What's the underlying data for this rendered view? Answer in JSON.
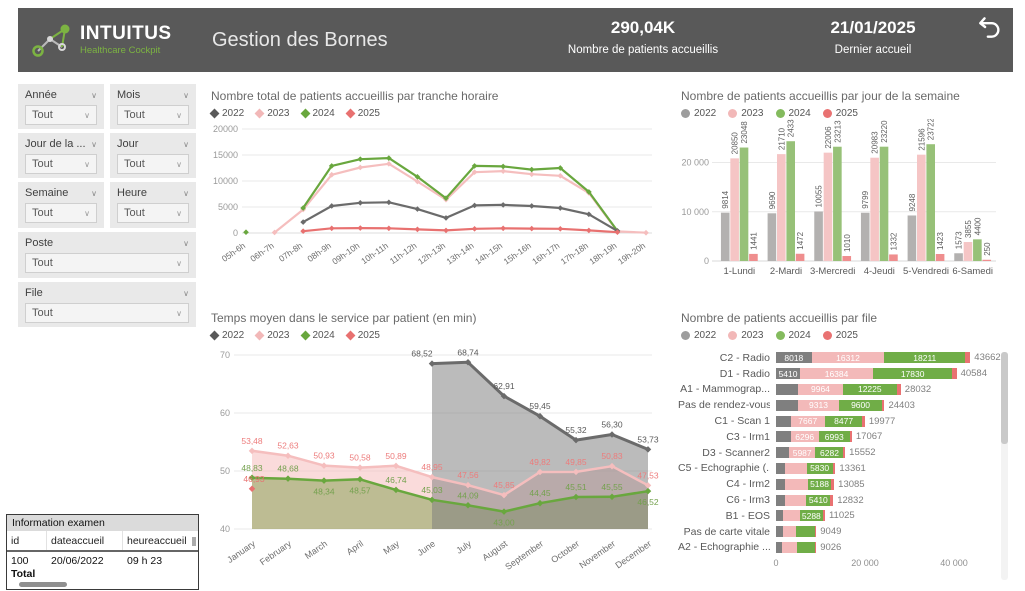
{
  "header": {
    "brand": {
      "name": "INTUITUS",
      "tagline": "Healthcare Cockpit"
    },
    "title": "Gestion des Bornes",
    "kpis": [
      {
        "value": "290,04K",
        "label": "Nombre de  patients accueillis"
      },
      {
        "value": "21/01/2025",
        "label": "Dernier accueil"
      }
    ]
  },
  "icons": {
    "dropdown_chevron": "∨",
    "undo": "curved-left-arrow"
  },
  "filters": [
    {
      "label": "Année",
      "value": "Tout"
    },
    {
      "label": "Mois",
      "value": "Tout"
    },
    {
      "label": "Jour de la ...",
      "value": "Tout"
    },
    {
      "label": "Jour",
      "value": "Tout"
    },
    {
      "label": "Semaine",
      "value": "Tout"
    },
    {
      "label": "Heure",
      "value": "Tout"
    },
    {
      "label": "Poste",
      "value": "Tout"
    },
    {
      "label": "File",
      "value": "Tout"
    }
  ],
  "colors": {
    "header_bg": "#595959",
    "accent_green": "#7CB342",
    "line": {
      "2022": "#6B6B6B",
      "2023": "#F5BEBE",
      "2024": "#69A73E",
      "2025": "#E87170"
    },
    "bar": {
      "2022": "#B3B1B0",
      "2023": "#F5C5C5",
      "2024": "#97C178",
      "2025": "#EF8E8E"
    },
    "stack": {
      "2022": "#7F7F7F",
      "2023": "#F3B9B9",
      "2024": "#70AD47",
      "2025": "#E97272"
    },
    "labels": {
      "2022": "#595959",
      "2023": "#ED7C7C",
      "2024": "#74A14E",
      "2025": "#E87170"
    },
    "grid": "#E9E9E9"
  },
  "chart_data": [
    {
      "type": "line",
      "title": "Nombre total de patients accueillis par tranche horaire",
      "legend": [
        "2022",
        "2023",
        "2024",
        "2025"
      ],
      "categories": [
        "05h-6h",
        "06h-7h",
        "07h-8h",
        "08h-9h",
        "09h-10h",
        "10h-11h",
        "11h-12h",
        "12h-13h",
        "13h-14h",
        "14h-15h",
        "15h-16h",
        "16h-17h",
        "17h-18h",
        "18h-19h",
        "19h-20h"
      ],
      "series": [
        {
          "name": "2022",
          "values": [
            null,
            null,
            2100,
            5200,
            5800,
            5900,
            4600,
            2900,
            5300,
            5400,
            5200,
            4800,
            3600,
            400,
            null
          ]
        },
        {
          "name": "2023",
          "values": [
            null,
            100,
            4500,
            11200,
            12600,
            13300,
            9900,
            6400,
            11700,
            11900,
            11300,
            11000,
            7700,
            300,
            50
          ]
        },
        {
          "name": "2024",
          "values": [
            150,
            null,
            4800,
            12900,
            14200,
            14400,
            10800,
            6700,
            12900,
            12800,
            12200,
            12500,
            7900,
            400,
            null
          ]
        },
        {
          "name": "2025",
          "values": [
            null,
            null,
            350,
            900,
            950,
            900,
            700,
            500,
            800,
            900,
            850,
            800,
            500,
            150,
            null
          ]
        }
      ],
      "ylim": [
        0,
        20000
      ],
      "yticks": [
        0,
        5000,
        10000,
        15000,
        20000
      ],
      "ytick_labels": [
        "0",
        "5000",
        "10000",
        "15000",
        "20000"
      ]
    },
    {
      "type": "bar",
      "title": "Nombre de patients accueillis par jour de la semaine",
      "legend": [
        "2022",
        "2023",
        "2024",
        "2025"
      ],
      "categories": [
        "1-Lundi",
        "2-Mardi",
        "3-Mercredi",
        "4-Jeudi",
        "5-Vendredi",
        "6-Samedi"
      ],
      "series": [
        {
          "name": "2022",
          "values": [
            9814,
            9690,
            10055,
            9799,
            9248,
            1573
          ]
        },
        {
          "name": "2023",
          "values": [
            20850,
            21710,
            22006,
            20983,
            21596,
            3855
          ]
        },
        {
          "name": "2024",
          "values": [
            23048,
            24331,
            23213,
            23220,
            23722,
            4400
          ]
        },
        {
          "name": "2025",
          "values": [
            1441,
            1472,
            1010,
            1332,
            1423,
            250
          ]
        }
      ],
      "ylim": [
        0,
        26000
      ],
      "yticks": [
        0,
        10000,
        20000
      ],
      "ytick_labels": [
        "0",
        "10 000",
        "20 000"
      ]
    },
    {
      "type": "area",
      "title": "Temps moyen dans le service par patient (en min)",
      "legend": [
        "2022",
        "2023",
        "2024",
        "2025"
      ],
      "categories": [
        "January",
        "February",
        "March",
        "April",
        "May",
        "June",
        "July",
        "August",
        "September",
        "October",
        "November",
        "December"
      ],
      "series": [
        {
          "name": "2022",
          "values": [
            null,
            null,
            null,
            null,
            null,
            68.52,
            68.74,
            62.91,
            59.45,
            55.32,
            56.3,
            53.73
          ]
        },
        {
          "name": "2023",
          "values": [
            53.48,
            52.63,
            50.93,
            50.58,
            50.89,
            48.95,
            47.56,
            45.85,
            49.82,
            49.85,
            50.83,
            47.53
          ]
        },
        {
          "name": "2024",
          "values": [
            48.83,
            48.68,
            48.34,
            48.57,
            46.74,
            45.03,
            44.09,
            43.0,
            44.45,
            45.51,
            45.55,
            46.52
          ]
        },
        {
          "name": "2025",
          "values": [
            46.93,
            null,
            null,
            null,
            null,
            null,
            null,
            null,
            null,
            null,
            null,
            null
          ]
        }
      ],
      "ylim": [
        40,
        70
      ],
      "yticks": [
        40,
        50,
        60,
        70
      ],
      "ytick_labels": [
        "40",
        "50",
        "60",
        "70"
      ]
    },
    {
      "type": "stacked-bar-h",
      "title": "Nombre de patients accueillis par file",
      "legend": [
        "2022",
        "2023",
        "2024",
        "2025"
      ],
      "rows": [
        {
          "label": "C2 - Radio",
          "values": [
            8018,
            16312,
            18211,
            1121
          ],
          "total": 43662
        },
        {
          "label": "D1 - Radio",
          "values": [
            5410,
            16384,
            17830,
            960
          ],
          "total": 40584
        },
        {
          "label": "A1 - Mammograp...",
          "values": [
            5000,
            9964,
            12225,
            843
          ],
          "total": 28032
        },
        {
          "label": "Pas de rendez-vous",
          "values": [
            4900,
            9313,
            9600,
            590
          ],
          "total": 24403
        },
        {
          "label": "C1 - Scan 1",
          "values": [
            3300,
            7667,
            8477,
            533
          ],
          "total": 19977
        },
        {
          "label": "C3 - Irm1",
          "values": [
            3300,
            6296,
            6993,
            478
          ],
          "total": 17067
        },
        {
          "label": "D3 - Scanner2",
          "values": [
            2900,
            5987,
            6282,
            383
          ],
          "total": 15552
        },
        {
          "label": "C5 - Echographie (...",
          "values": [
            2000,
            4900,
            5830,
            631
          ],
          "total": 13361
        },
        {
          "label": "C4 - Irm2",
          "values": [
            2100,
            5090,
            5188,
            707
          ],
          "total": 13085
        },
        {
          "label": "C6 - Irm3",
          "values": [
            1900,
            4900,
            5410,
            622
          ],
          "total": 12832
        },
        {
          "label": "B1 - EOS",
          "values": [
            1500,
            3800,
            5288,
            437
          ],
          "total": 11025
        },
        {
          "label": "Pas de carte vitale",
          "values": [
            1500,
            3000,
            4200,
            349
          ],
          "total": 9049
        },
        {
          "label": "A2 - Echographie ...",
          "values": [
            1300,
            3400,
            4000,
            326
          ],
          "total": 9026
        }
      ],
      "xticks": [
        0,
        20000,
        40000
      ],
      "xtick_labels": [
        "0",
        "20 000",
        "40 000"
      ]
    }
  ],
  "info_table": {
    "title": "Information examen",
    "columns": [
      "id",
      "dateaccueil",
      "heureaccueil"
    ],
    "rows": [
      [
        "100",
        "20/06/2022",
        "09 h 23"
      ]
    ],
    "total_label": "Total"
  }
}
